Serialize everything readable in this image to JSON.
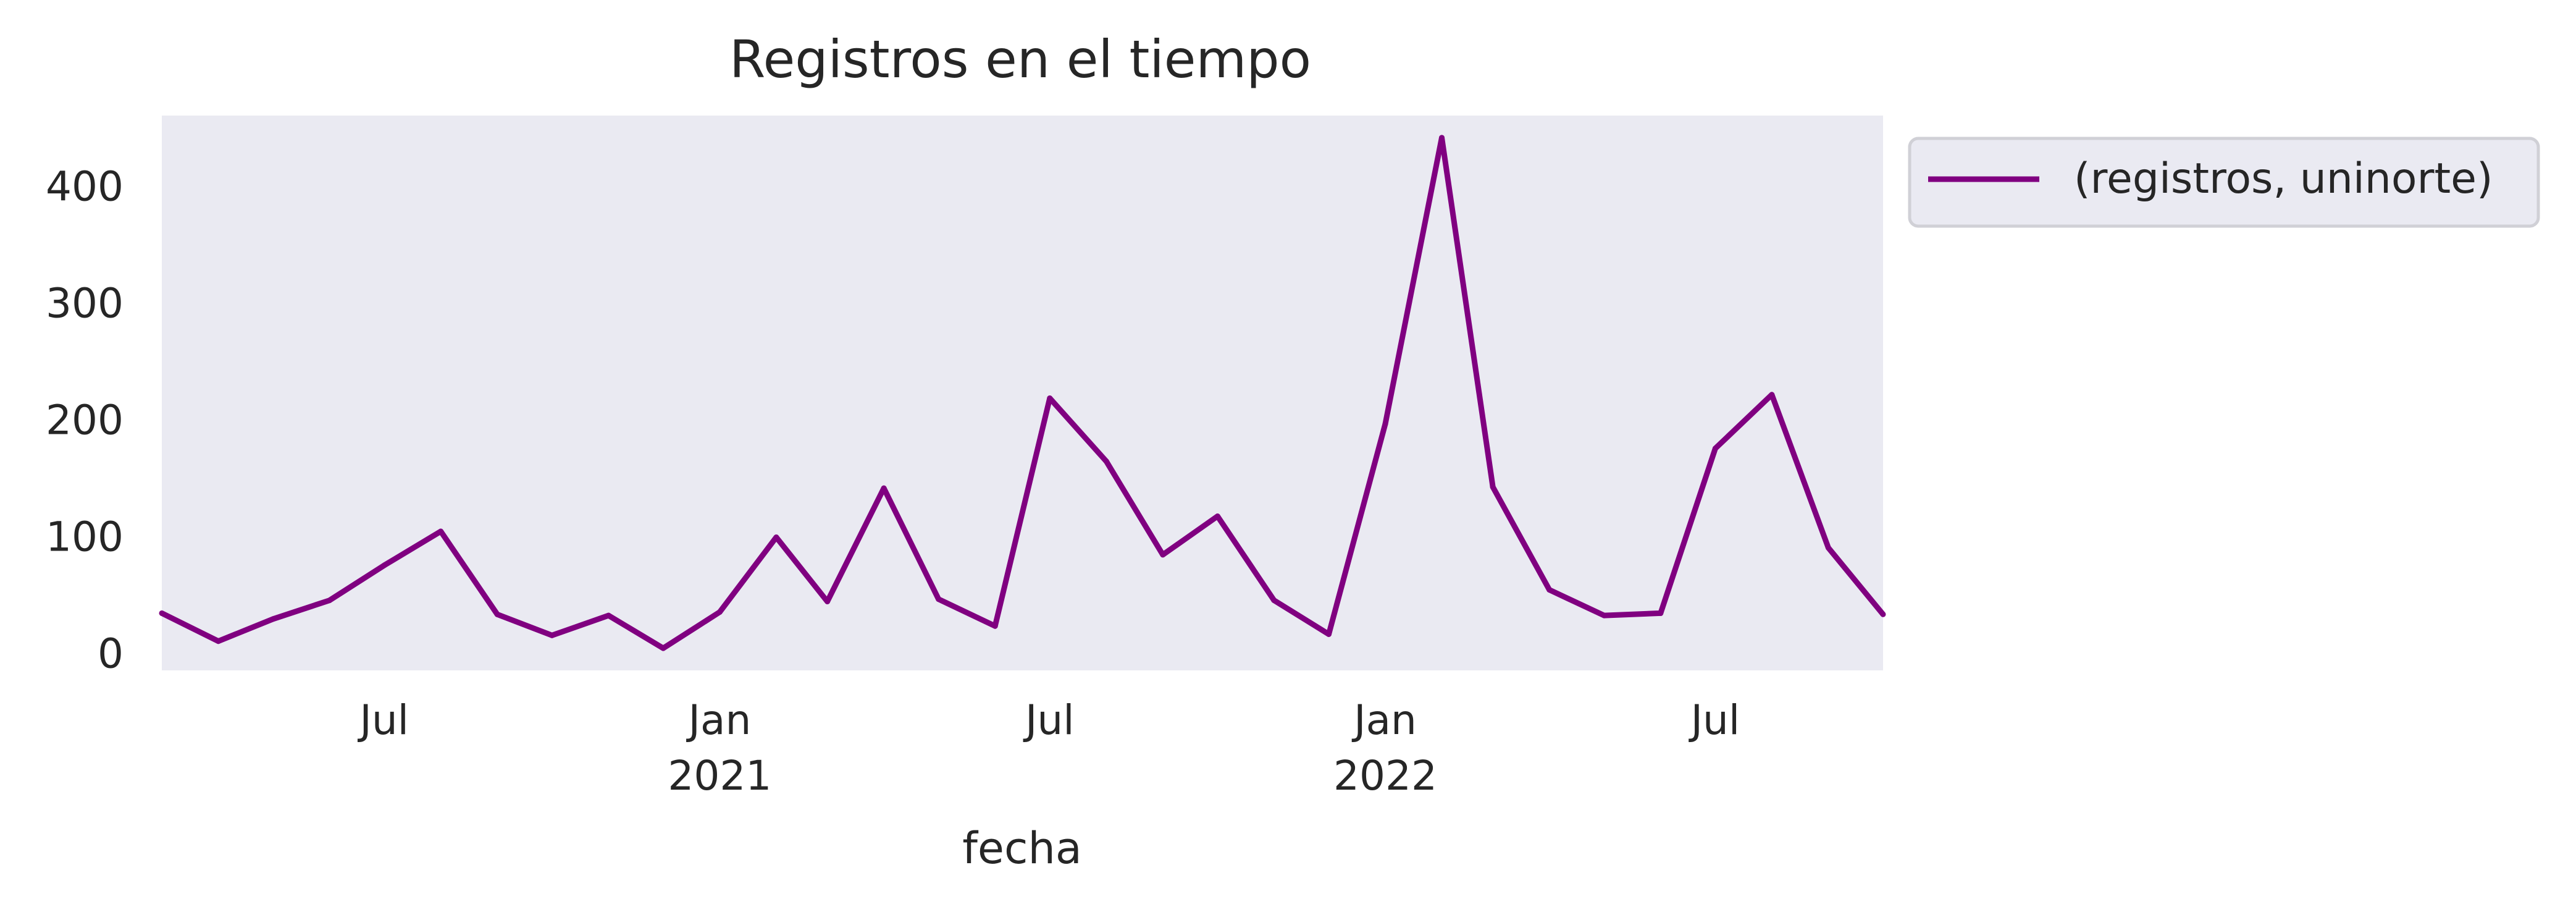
{
  "chart_data": {
    "type": "line",
    "title": "Registros en el tiempo",
    "xlabel": "fecha",
    "ylabel": "",
    "x_axis_type": "date",
    "x_range": [
      "2020-03-01",
      "2022-10-01"
    ],
    "ylim": [
      -15,
      460
    ],
    "grid": false,
    "legend_position": "outside-top-right",
    "yticks": [
      0,
      100,
      200,
      300,
      400
    ],
    "xticks": [
      {
        "date": "2020-07-01",
        "label": "Jul",
        "sublabel": ""
      },
      {
        "date": "2021-01-01",
        "label": "Jan",
        "sublabel": "2021"
      },
      {
        "date": "2021-07-01",
        "label": "Jul",
        "sublabel": ""
      },
      {
        "date": "2022-01-01",
        "label": "Jan",
        "sublabel": "2022"
      },
      {
        "date": "2022-07-01",
        "label": "Jul",
        "sublabel": ""
      }
    ],
    "series": [
      {
        "name": "(registros, uninorte)",
        "color": "#800080",
        "points": [
          {
            "x": "2020-03-01",
            "y": 34
          },
          {
            "x": "2020-04-01",
            "y": 10
          },
          {
            "x": "2020-05-01",
            "y": 29
          },
          {
            "x": "2020-06-01",
            "y": 45
          },
          {
            "x": "2020-07-01",
            "y": 75
          },
          {
            "x": "2020-08-01",
            "y": 104
          },
          {
            "x": "2020-09-01",
            "y": 33
          },
          {
            "x": "2020-10-01",
            "y": 15
          },
          {
            "x": "2020-11-01",
            "y": 32
          },
          {
            "x": "2020-12-01",
            "y": 4
          },
          {
            "x": "2021-01-01",
            "y": 35
          },
          {
            "x": "2021-02-01",
            "y": 99
          },
          {
            "x": "2021-03-01",
            "y": 44
          },
          {
            "x": "2021-04-01",
            "y": 141
          },
          {
            "x": "2021-05-01",
            "y": 46
          },
          {
            "x": "2021-06-01",
            "y": 23
          },
          {
            "x": "2021-07-01",
            "y": 218
          },
          {
            "x": "2021-08-01",
            "y": 164
          },
          {
            "x": "2021-09-01",
            "y": 84
          },
          {
            "x": "2021-10-01",
            "y": 117
          },
          {
            "x": "2021-11-01",
            "y": 45
          },
          {
            "x": "2021-12-01",
            "y": 16
          },
          {
            "x": "2022-01-01",
            "y": 196
          },
          {
            "x": "2022-02-01",
            "y": 441
          },
          {
            "x": "2022-03-01",
            "y": 142
          },
          {
            "x": "2022-04-01",
            "y": 54
          },
          {
            "x": "2022-05-01",
            "y": 32
          },
          {
            "x": "2022-06-01",
            "y": 34
          },
          {
            "x": "2022-07-01",
            "y": 175
          },
          {
            "x": "2022-08-01",
            "y": 221
          },
          {
            "x": "2022-09-01",
            "y": 90
          },
          {
            "x": "2022-10-01",
            "y": 33
          }
        ]
      }
    ]
  }
}
